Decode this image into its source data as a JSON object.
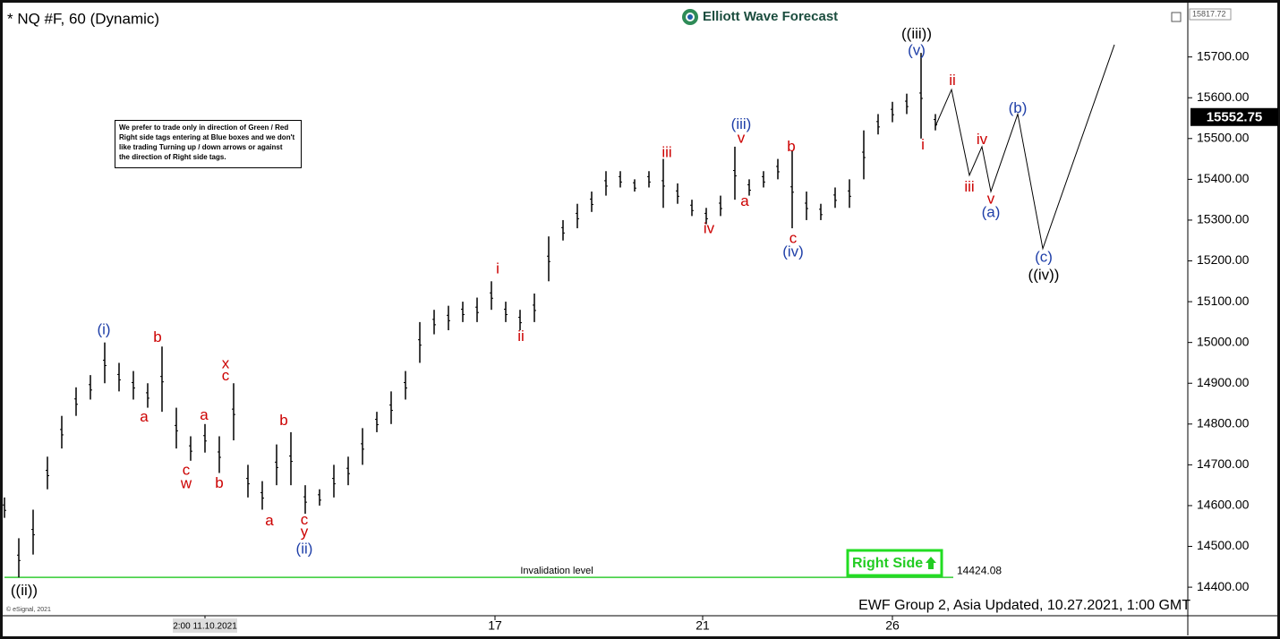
{
  "chart_data": {
    "type": "ohlc",
    "title": "* NQ #F, 60 (Dynamic)",
    "brand": "Elliott Wave Forecast",
    "note_lines": [
      "We prefer to trade only in direction of Green / Red",
      "Right side tags entering at Blue boxes and we don't",
      "like trading Turning up / down arrows or against",
      "the direction of Right side tags."
    ],
    "footer": "EWF Group 2, Asia Updated, 10.27.2021, 1:00 GMT",
    "copyright": "© eSignal, 2021",
    "right_side_label": "Right Side",
    "color": "#000000",
    "x": [
      0,
      4,
      8,
      12,
      16,
      20,
      24,
      28,
      32,
      36,
      40,
      44,
      48,
      52,
      56,
      60,
      64,
      68,
      72,
      76,
      80,
      84,
      88,
      92,
      96,
      100,
      104,
      108,
      112,
      116,
      120,
      124,
      128,
      132,
      136,
      140,
      144,
      148,
      152,
      156,
      160,
      164,
      168,
      172,
      176,
      180,
      184,
      188,
      192,
      196,
      200,
      204,
      208,
      212,
      216,
      220,
      224,
      228,
      232,
      236,
      240,
      244,
      248,
      252,
      256,
      260
    ],
    "high": [
      14620,
      14520,
      14590,
      14720,
      14820,
      14890,
      14920,
      15000,
      14950,
      14930,
      14900,
      14990,
      14840,
      14770,
      14800,
      14770,
      14900,
      14700,
      14660,
      14750,
      14780,
      14650,
      14640,
      14700,
      14720,
      14790,
      14830,
      14880,
      14930,
      15050,
      15080,
      15090,
      15100,
      15110,
      15150,
      15100,
      15080,
      15120,
      15260,
      15300,
      15340,
      15370,
      15420,
      15420,
      15400,
      15420,
      15450,
      15390,
      15350,
      15330,
      15360,
      15480,
      15400,
      15420,
      15450,
      15470,
      15370,
      15340,
      15380,
      15400,
      15520,
      15560,
      15590,
      15610,
      15710,
      15560
    ],
    "low": [
      14570,
      14424,
      14480,
      14640,
      14740,
      14820,
      14860,
      14900,
      14880,
      14860,
      14840,
      14830,
      14740,
      14710,
      14730,
      14680,
      14760,
      14620,
      14590,
      14650,
      14650,
      14580,
      14600,
      14620,
      14650,
      14700,
      14780,
      14800,
      14860,
      14950,
      15020,
      15030,
      15050,
      15050,
      15080,
      15050,
      15030,
      15050,
      15150,
      15250,
      15280,
      15320,
      15360,
      15380,
      15370,
      15380,
      15330,
      15340,
      15310,
      15290,
      15310,
      15350,
      15360,
      15380,
      15400,
      15280,
      15300,
      15300,
      15330,
      15330,
      15400,
      15510,
      15540,
      15560,
      15500,
      15520
    ],
    "projection": {
      "color": "#000000",
      "x": [
        260,
        264.5,
        269.5,
        273,
        275.5,
        283,
        290,
        310
      ],
      "y": [
        15530,
        15620,
        15410,
        15480,
        15370,
        15560,
        15230,
        15730
      ]
    },
    "invalidation": {
      "value": 14424.08,
      "label": "Invalidation level",
      "color": "#33cc33"
    },
    "last_price": 15552.75,
    "xlim": [
      0,
      330.5
    ],
    "ylim": [
      14330,
      15817.72
    ],
    "xticks": [
      {
        "value": 56,
        "label": "2:00 11.10.2021"
      },
      {
        "value": 137,
        "label": "17"
      },
      {
        "value": 195,
        "label": "21"
      },
      {
        "value": 248,
        "label": "26"
      }
    ],
    "yticks": [
      {
        "value": 14400,
        "label": "14400.00"
      },
      {
        "value": 14500,
        "label": "14500.00"
      },
      {
        "value": 14600,
        "label": "14600.00"
      },
      {
        "value": 14700,
        "label": "14700.00"
      },
      {
        "value": 14800,
        "label": "14800.00"
      },
      {
        "value": 14900,
        "label": "14900.00"
      },
      {
        "value": 15000,
        "label": "15000.00"
      },
      {
        "value": 15100,
        "label": "15100.00"
      },
      {
        "value": 15200,
        "label": "15200.00"
      },
      {
        "value": 15300,
        "label": "15300.00"
      },
      {
        "value": 15400,
        "label": "15400.00"
      },
      {
        "value": 15500,
        "label": "15500.00"
      },
      {
        "value": 15600,
        "label": "15600.00"
      },
      {
        "value": 15700,
        "label": "15700.00"
      }
    ],
    "annotations": [
      {
        "text": "((ii))",
        "x": 5.5,
        "y": 14390,
        "color": "#000000"
      },
      {
        "text": "(i)",
        "x": 27.75,
        "y": 15030,
        "color": "#1f3fa8"
      },
      {
        "text": "b",
        "x": 42.75,
        "y": 15011,
        "color": "#cc0000"
      },
      {
        "text": "a",
        "x": 39,
        "y": 14816,
        "color": "#cc0000"
      },
      {
        "text": "c",
        "x": 50.75,
        "y": 14685,
        "color": "#cc0000"
      },
      {
        "text": "w",
        "x": 50.75,
        "y": 14652,
        "color": "#cc0000"
      },
      {
        "text": "a",
        "x": 55.75,
        "y": 14820,
        "color": "#cc0000"
      },
      {
        "text": "b",
        "x": 60,
        "y": 14654,
        "color": "#cc0000"
      },
      {
        "text": "x",
        "x": 61.75,
        "y": 14947,
        "color": "#cc0000"
      },
      {
        "text": "c",
        "x": 61.75,
        "y": 14917,
        "color": "#cc0000"
      },
      {
        "text": "a",
        "x": 74,
        "y": 14562,
        "color": "#cc0000"
      },
      {
        "text": "b",
        "x": 78,
        "y": 14807,
        "color": "#cc0000"
      },
      {
        "text": "c",
        "x": 83.75,
        "y": 14564,
        "color": "#cc0000"
      },
      {
        "text": "y",
        "x": 83.75,
        "y": 14534,
        "color": "#cc0000"
      },
      {
        "text": "(ii)",
        "x": 83.75,
        "y": 14492,
        "color": "#1f3fa8"
      },
      {
        "text": "i",
        "x": 137.75,
        "y": 15179,
        "color": "#cc0000"
      },
      {
        "text": "ii",
        "x": 144.25,
        "y": 15013,
        "color": "#cc0000"
      },
      {
        "text": "iii",
        "x": 185,
        "y": 15464,
        "color": "#cc0000"
      },
      {
        "text": "iv",
        "x": 196.75,
        "y": 15278,
        "color": "#cc0000"
      },
      {
        "text": "(iii)",
        "x": 205.75,
        "y": 15534,
        "color": "#1f3fa8"
      },
      {
        "text": "v",
        "x": 205.75,
        "y": 15499,
        "color": "#cc0000"
      },
      {
        "text": "a",
        "x": 206.75,
        "y": 15345,
        "color": "#cc0000"
      },
      {
        "text": "b",
        "x": 219.75,
        "y": 15479,
        "color": "#cc0000"
      },
      {
        "text": "c",
        "x": 220.25,
        "y": 15254,
        "color": "#cc0000"
      },
      {
        "text": "(iv)",
        "x": 220.25,
        "y": 15221,
        "color": "#1f3fa8"
      },
      {
        "text": "((iii))",
        "x": 254.75,
        "y": 15755,
        "color": "#000000"
      },
      {
        "text": "(v)",
        "x": 254.75,
        "y": 15715,
        "color": "#1f3fa8"
      },
      {
        "text": "i",
        "x": 256.5,
        "y": 15483,
        "color": "#cc0000"
      },
      {
        "text": "ii",
        "x": 264.75,
        "y": 15641,
        "color": "#cc0000"
      },
      {
        "text": "iii",
        "x": 269.5,
        "y": 15380,
        "color": "#cc0000"
      },
      {
        "text": "iv",
        "x": 273,
        "y": 15496,
        "color": "#cc0000"
      },
      {
        "text": "v",
        "x": 275.5,
        "y": 15350,
        "color": "#cc0000"
      },
      {
        "text": "(a)",
        "x": 275.5,
        "y": 15317,
        "color": "#1f3fa8"
      },
      {
        "text": "(b)",
        "x": 283,
        "y": 15573,
        "color": "#1f3fa8"
      },
      {
        "text": "(c)",
        "x": 290.25,
        "y": 15208,
        "color": "#1f3fa8"
      },
      {
        "text": "((iv))",
        "x": 290.25,
        "y": 15164,
        "color": "#000000"
      }
    ]
  }
}
